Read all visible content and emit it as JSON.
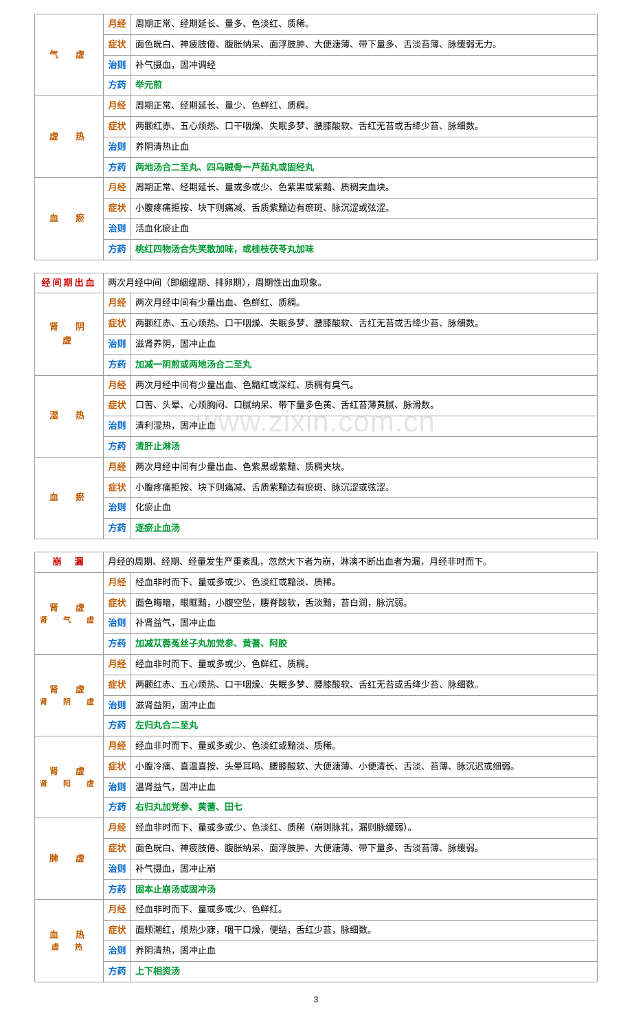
{
  "watermark": "www.zixin.com.cn",
  "pageNum": "3",
  "table1": {
    "groups": [
      {
        "cat": "气　虚",
        "catClass": "brown",
        "rows": [
          {
            "label": "月经",
            "labelClass": "jing",
            "text": "周期正常、经期延长、量多、色淡红、质稀。",
            "textClass": ""
          },
          {
            "label": "症状",
            "labelClass": "zheng",
            "text": "面色㿠白、神疲肢倦、腹胀纳呆、面浮肢肿、大便溏薄、带下量多、舌淡苔薄、脉缓弱无力。",
            "textClass": ""
          },
          {
            "label": "治则",
            "labelClass": "zhi",
            "text": "补气摄血，固冲调经",
            "textClass": ""
          },
          {
            "label": "方药",
            "labelClass": "fang",
            "text": "举元煎",
            "textClass": "green"
          }
        ]
      },
      {
        "cat": "虚　热",
        "catClass": "brown",
        "rows": [
          {
            "label": "月经",
            "labelClass": "jing",
            "text": "周期正常、经期延长、量少、色鲜红、质稠。",
            "textClass": ""
          },
          {
            "label": "症状",
            "labelClass": "zheng",
            "text": "两颧红赤、五心烦热、口干咽燥、失眠多梦、腰膝酸软、舌红无苔或舌绛少苔、脉细数。",
            "textClass": ""
          },
          {
            "label": "治则",
            "labelClass": "zhi",
            "text": "养阴清热止血",
            "textClass": ""
          },
          {
            "label": "方药",
            "labelClass": "fang",
            "text": "两地汤合二至丸、四乌贼骨一芦茹丸或固经丸",
            "textClass": "green"
          }
        ]
      },
      {
        "cat": "血　瘀",
        "catClass": "brown",
        "rows": [
          {
            "label": "月经",
            "labelClass": "jing",
            "text": "周期正常、经期延长、量或多或少、色紫黑或紫黯、质稠夹血块。",
            "textClass": ""
          },
          {
            "label": "症状",
            "labelClass": "zheng",
            "text": "小腹疼痛拒按、块下则痛减、舌质紫黯边有瘀斑、脉沉涩或弦涩。",
            "textClass": ""
          },
          {
            "label": "治则",
            "labelClass": "zhi",
            "text": "活血化瘀止血",
            "textClass": ""
          },
          {
            "label": "方药",
            "labelClass": "fang",
            "text": "桃红四物汤合失笑散加味，或桂枝茯苓丸加味",
            "textClass": "green"
          }
        ]
      }
    ]
  },
  "table2": {
    "header": {
      "title": "经间期出血",
      "desc": "两次月经中间（即絪缊期、排卵期），周期性出血现象。"
    },
    "groups": [
      {
        "cat": "肾　阴　虚",
        "catClass": "brown",
        "rows": [
          {
            "label": "月经",
            "labelClass": "jing",
            "text": "两次月经中间有少量出血、色鲜红、质稠。",
            "textClass": ""
          },
          {
            "label": "症状",
            "labelClass": "zheng",
            "text": "两颧红赤、五心烦热、口干咽燥、失眠多梦、腰膝酸软、舌红无苔或舌绛少苔、脉细数。",
            "textClass": ""
          },
          {
            "label": "治则",
            "labelClass": "zhi",
            "text": "滋肾养阴，固冲止血",
            "textClass": ""
          },
          {
            "label": "方药",
            "labelClass": "fang",
            "text": "加减一阴煎或两地汤合二至丸",
            "textClass": "green"
          }
        ]
      },
      {
        "cat": "湿　热",
        "catClass": "brown",
        "rows": [
          {
            "label": "月经",
            "labelClass": "jing",
            "text": "两次月经中间有少量出血、色黯红或深红、质稠有臭气。",
            "textClass": ""
          },
          {
            "label": "症状",
            "labelClass": "zheng",
            "text": "口苦、头晕、心烦胸闷、口腻纳呆、带下量多色黄、舌红苔薄黄腻、脉滑数。",
            "textClass": ""
          },
          {
            "label": "治则",
            "labelClass": "zhi",
            "text": "清利湿热，固冲止血",
            "textClass": ""
          },
          {
            "label": "方药",
            "labelClass": "fang",
            "text": "清肝止淋汤",
            "textClass": "green"
          }
        ]
      },
      {
        "cat": "血　瘀",
        "catClass": "brown",
        "rows": [
          {
            "label": "月经",
            "labelClass": "jing",
            "text": "两次月经中间有少量出血、色紫黑或紫黯、质稠夹块。",
            "textClass": ""
          },
          {
            "label": "症状",
            "labelClass": "zheng",
            "text": "小腹疼痛拒按、块下则痛减、舌质紫黯边有瘀斑、脉沉涩或弦涩。",
            "textClass": ""
          },
          {
            "label": "治则",
            "labelClass": "zhi",
            "text": "化瘀止血",
            "textClass": ""
          },
          {
            "label": "方药",
            "labelClass": "fang",
            "text": "逐瘀止血汤",
            "textClass": "green"
          }
        ]
      }
    ]
  },
  "table3": {
    "header": {
      "title": "崩　漏",
      "desc": "月经的周期、经期、经量发生严重紊乱，忽然大下者为崩，淋漓不断出血者为漏，月经非时而下。"
    },
    "groups": [
      {
        "cat": "肾　虚",
        "sub": "肾　气　虚",
        "catClass": "brown",
        "rows": [
          {
            "label": "月经",
            "labelClass": "jing",
            "text": "经血非时而下、量或多或少、色淡红或黯淡、质稀。",
            "textClass": ""
          },
          {
            "label": "症状",
            "labelClass": "zheng",
            "text": "面色晦暗，眼眶黯，小腹空坠，腰脊酸软，舌淡黯，苔白润，脉沉弱。",
            "textClass": ""
          },
          {
            "label": "治则",
            "labelClass": "zhi",
            "text": "补肾益气，固冲止血",
            "textClass": ""
          },
          {
            "label": "方药",
            "labelClass": "fang",
            "text": "加减苁蓉菟丝子丸加党参、黄蓍、阿胶",
            "textClass": "green"
          }
        ]
      },
      {
        "cat": "肾　虚",
        "sub": "肾　阴　虚",
        "catClass": "brown",
        "rows": [
          {
            "label": "月经",
            "labelClass": "jing",
            "text": "经血非时而下、量或多或少、色鲜红、质稠。",
            "textClass": ""
          },
          {
            "label": "症状",
            "labelClass": "zheng",
            "text": "两颧红赤、五心烦热、口干咽燥、失眠多梦、腰膝酸软、舌红无苔或舌绛少苔、脉细数。",
            "textClass": ""
          },
          {
            "label": "治则",
            "labelClass": "zhi",
            "text": "滋肾益阴，固冲止血",
            "textClass": ""
          },
          {
            "label": "方药",
            "labelClass": "fang",
            "text": "左归丸合二至丸",
            "textClass": "green"
          }
        ]
      },
      {
        "cat": "肾　虚",
        "sub": "肾　阳　虚",
        "catClass": "brown",
        "rows": [
          {
            "label": "月经",
            "labelClass": "jing",
            "text": "经血非时而下、量或多或少、色淡红或黯淡、质稀。",
            "textClass": ""
          },
          {
            "label": "症状",
            "labelClass": "zheng",
            "text": "小腹冷痛、喜温喜按、头晕耳鸣、腰膝酸软、大便溏薄、小便清长、舌淡、苔薄、脉沉迟或细弱。",
            "textClass": ""
          },
          {
            "label": "治则",
            "labelClass": "zhi",
            "text": "温肾益气，固冲止血",
            "textClass": ""
          },
          {
            "label": "方药",
            "labelClass": "fang",
            "text": "右归丸加党参、黄蓍、田七",
            "textClass": "green"
          }
        ]
      },
      {
        "cat": "脾　虚",
        "sub": "",
        "catClass": "brown",
        "rows": [
          {
            "label": "月经",
            "labelClass": "jing",
            "text": "经血非时而下、量或多或少、色淡红、质稀（崩则脉芤，漏则脉缓弱）。",
            "textClass": ""
          },
          {
            "label": "症状",
            "labelClass": "zheng",
            "text": "面色㿠白、神疲肢倦、腹胀纳呆、面浮肢肿、大便溏薄、带下量多、舌淡苔薄、脉缓弱。",
            "textClass": ""
          },
          {
            "label": "治则",
            "labelClass": "zhi",
            "text": "补气摄血，固冲止崩",
            "textClass": ""
          },
          {
            "label": "方药",
            "labelClass": "fang",
            "text": "固本止崩汤或固冲汤",
            "textClass": "green"
          }
        ]
      },
      {
        "cat": "血　热",
        "sub": "虚　热",
        "catClass": "brown",
        "rows": [
          {
            "label": "月经",
            "labelClass": "jing",
            "text": "经血非时而下、量或多或少、色鲜红。",
            "textClass": ""
          },
          {
            "label": "症状",
            "labelClass": "zheng",
            "text": "面颊潮红，烦热少寐，咽干口燥，便结，舌红少苔，脉细数。",
            "textClass": ""
          },
          {
            "label": "治则",
            "labelClass": "zhi",
            "text": "养阴清热，固冲止血",
            "textClass": ""
          },
          {
            "label": "方药",
            "labelClass": "fang",
            "text": "上下相资汤",
            "textClass": "green"
          }
        ]
      }
    ]
  }
}
